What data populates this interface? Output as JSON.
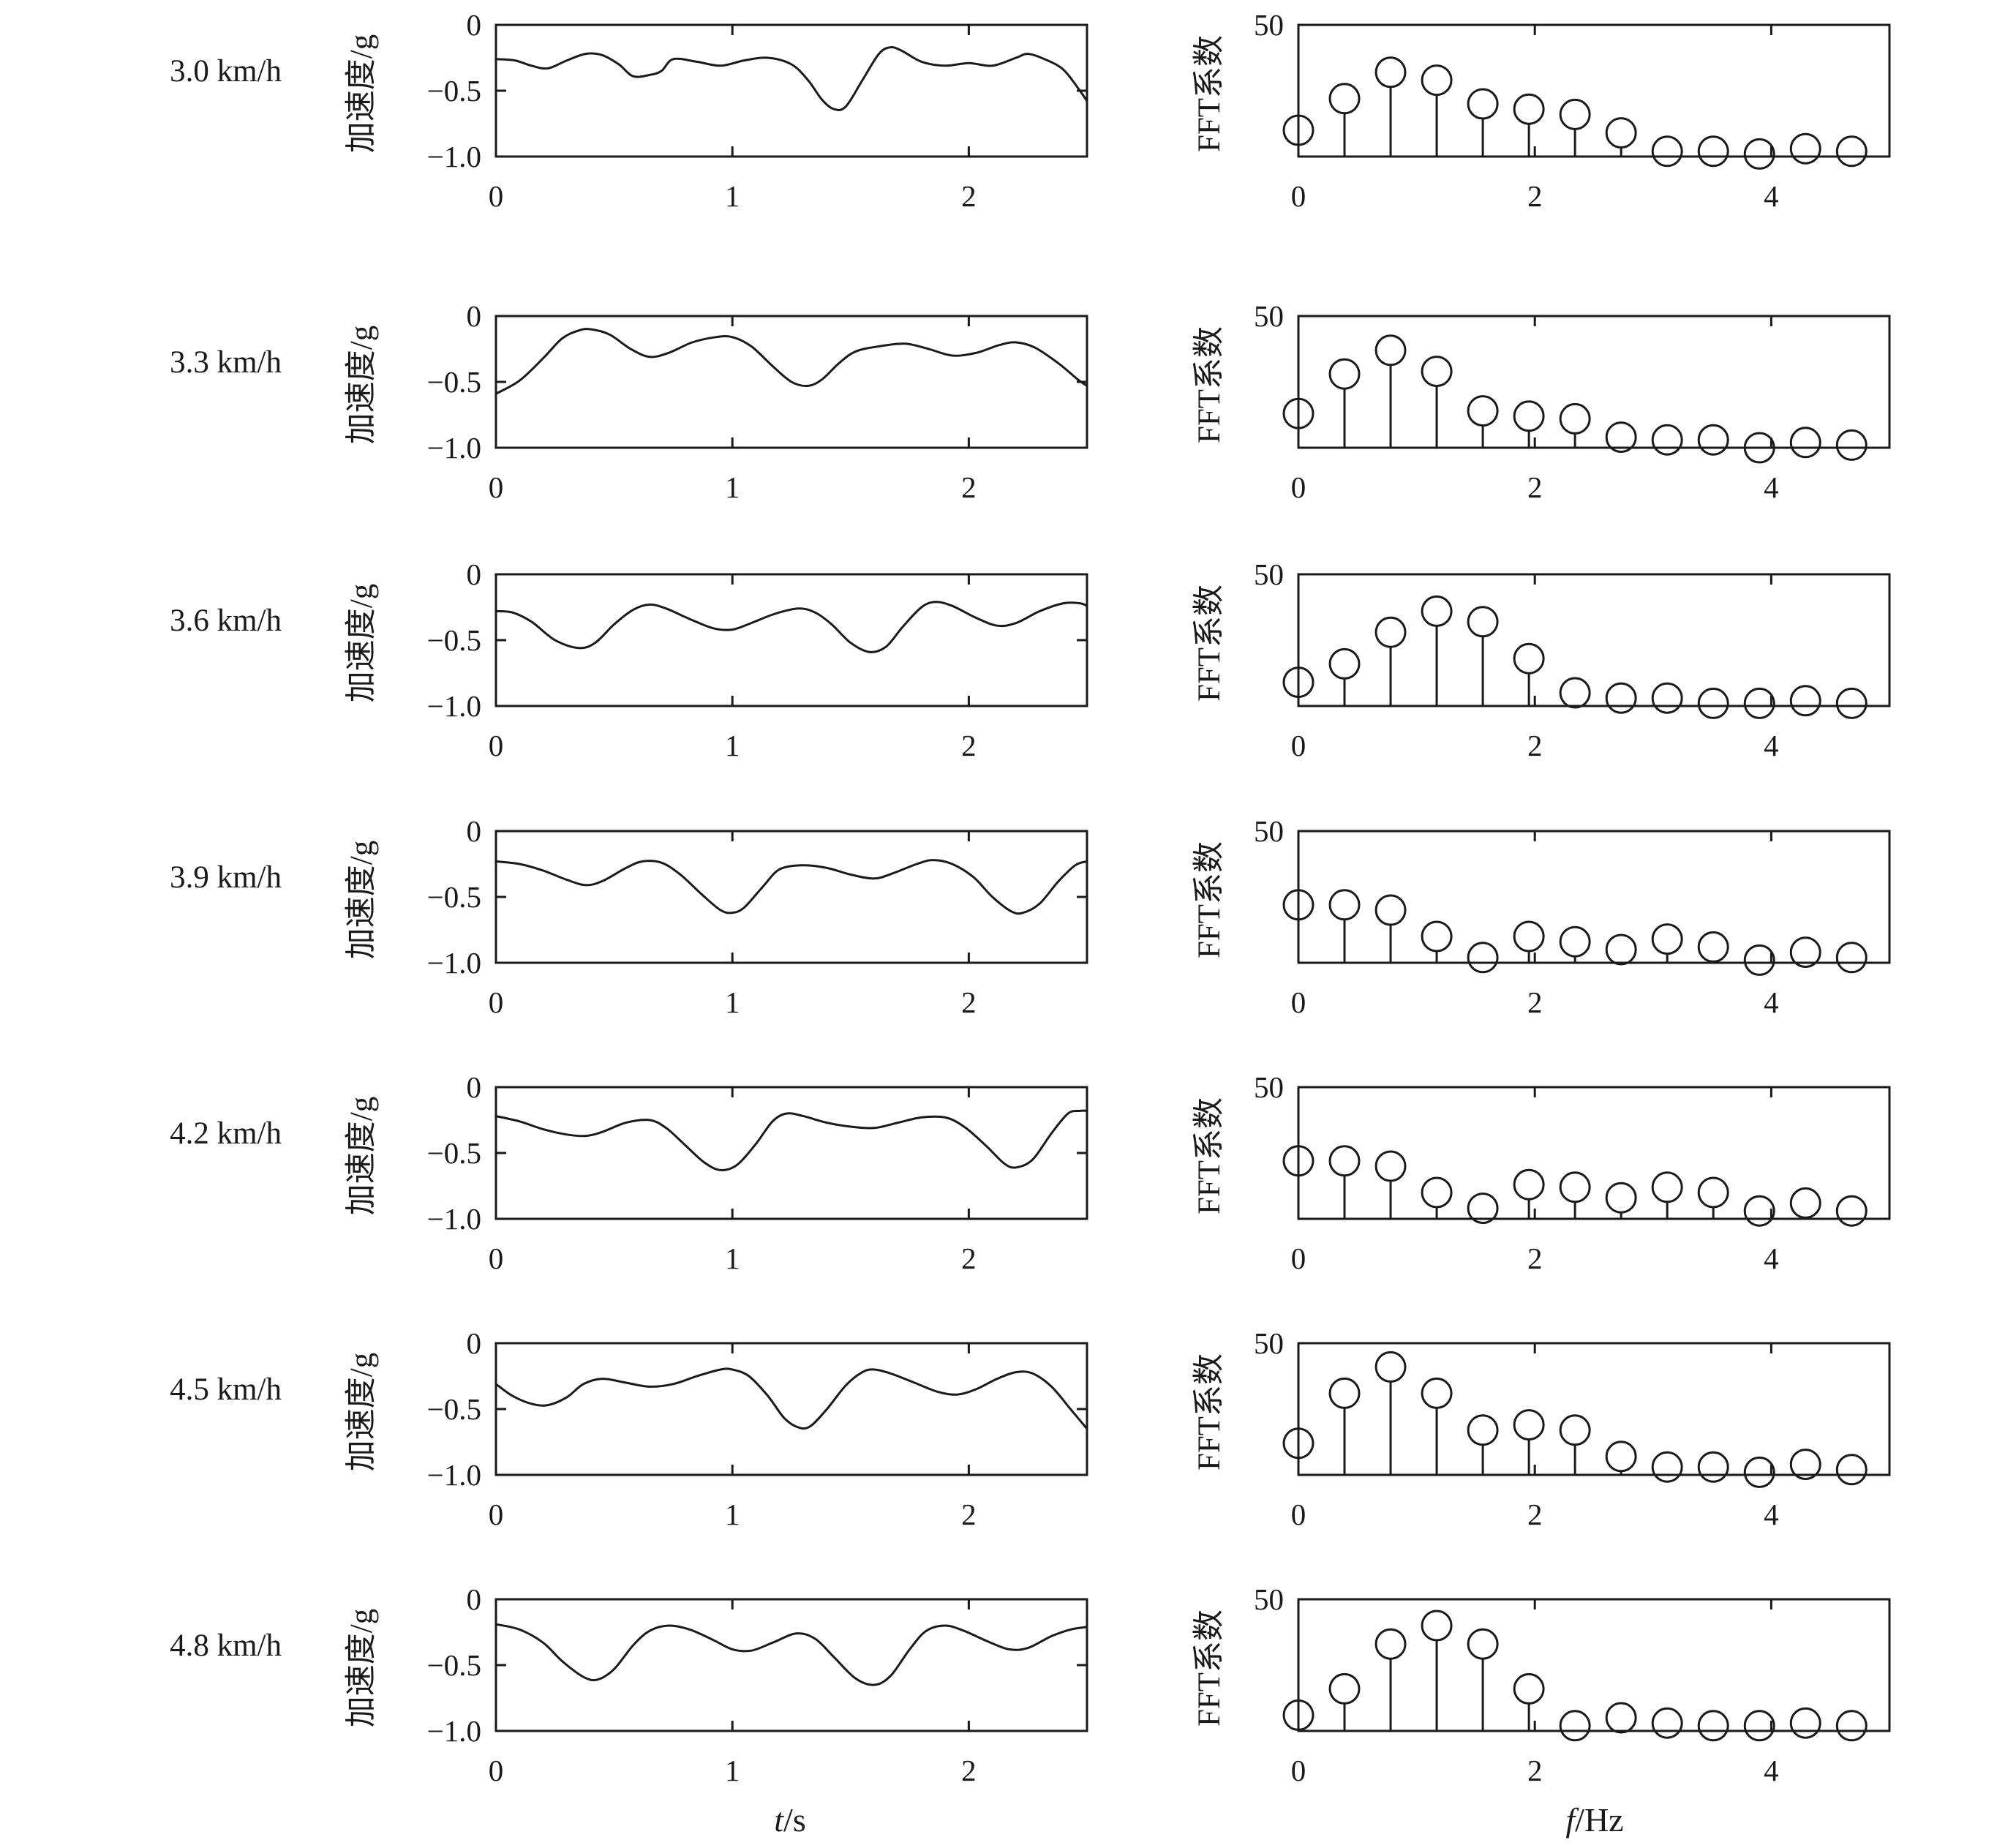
{
  "chart_data": {
    "type": "line",
    "x_label_italic": "t",
    "x_label_unit": "/s",
    "f_label_italic": "f",
    "f_label_unit": "/Hz",
    "time_ylabel": "加速度/g",
    "fft_ylabel": "FFT系数",
    "time_xlim": [
      0,
      2.5
    ],
    "time_ylim": [
      -1.0,
      0
    ],
    "time_xticks": [
      "0",
      "1",
      "2"
    ],
    "time_yticks": [
      "0",
      "−0.5",
      "−1.0"
    ],
    "fft_xlim": [
      0,
      5
    ],
    "fft_ylim": [
      0,
      50
    ],
    "fft_xticks": [
      "0",
      "2",
      "4"
    ],
    "fft_yticks": [
      "50"
    ],
    "fft_frequencies": [
      0,
      0.39,
      0.78,
      1.17,
      1.56,
      1.95,
      2.34,
      2.73,
      3.12,
      3.51,
      3.9,
      4.29,
      4.68
    ],
    "rows": [
      {
        "speed": "3.0 km/h",
        "time_series": [
          [
            0,
            -0.26
          ],
          [
            0.08,
            -0.27
          ],
          [
            0.15,
            -0.31
          ],
          [
            0.22,
            -0.33
          ],
          [
            0.3,
            -0.27
          ],
          [
            0.38,
            -0.22
          ],
          [
            0.45,
            -0.23
          ],
          [
            0.52,
            -0.3
          ],
          [
            0.58,
            -0.39
          ],
          [
            0.65,
            -0.38
          ],
          [
            0.7,
            -0.35
          ],
          [
            0.75,
            -0.26
          ],
          [
            0.85,
            -0.28
          ],
          [
            0.95,
            -0.31
          ],
          [
            1.05,
            -0.27
          ],
          [
            1.15,
            -0.25
          ],
          [
            1.25,
            -0.3
          ],
          [
            1.32,
            -0.42
          ],
          [
            1.38,
            -0.57
          ],
          [
            1.43,
            -0.64
          ],
          [
            1.48,
            -0.62
          ],
          [
            1.55,
            -0.42
          ],
          [
            1.62,
            -0.22
          ],
          [
            1.67,
            -0.17
          ],
          [
            1.72,
            -0.2
          ],
          [
            1.8,
            -0.28
          ],
          [
            1.9,
            -0.31
          ],
          [
            2.0,
            -0.29
          ],
          [
            2.1,
            -0.31
          ],
          [
            2.2,
            -0.25
          ],
          [
            2.25,
            -0.22
          ],
          [
            2.32,
            -0.26
          ],
          [
            2.4,
            -0.34
          ],
          [
            2.47,
            -0.5
          ],
          [
            2.5,
            -0.58
          ]
        ],
        "fft_values": [
          10,
          22,
          32,
          29,
          20,
          18,
          16,
          9,
          2,
          2,
          1,
          3,
          2
        ]
      },
      {
        "speed": "3.3 km/h",
        "time_series": [
          [
            0,
            -0.59
          ],
          [
            0.1,
            -0.49
          ],
          [
            0.2,
            -0.32
          ],
          [
            0.28,
            -0.17
          ],
          [
            0.35,
            -0.11
          ],
          [
            0.4,
            -0.1
          ],
          [
            0.48,
            -0.14
          ],
          [
            0.57,
            -0.25
          ],
          [
            0.65,
            -0.31
          ],
          [
            0.73,
            -0.28
          ],
          [
            0.83,
            -0.2
          ],
          [
            0.93,
            -0.16
          ],
          [
            1.0,
            -0.16
          ],
          [
            1.08,
            -0.23
          ],
          [
            1.17,
            -0.38
          ],
          [
            1.25,
            -0.5
          ],
          [
            1.32,
            -0.53
          ],
          [
            1.38,
            -0.48
          ],
          [
            1.45,
            -0.36
          ],
          [
            1.52,
            -0.27
          ],
          [
            1.62,
            -0.23
          ],
          [
            1.73,
            -0.21
          ],
          [
            1.83,
            -0.25
          ],
          [
            1.93,
            -0.3
          ],
          [
            2.03,
            -0.28
          ],
          [
            2.13,
            -0.22
          ],
          [
            2.2,
            -0.2
          ],
          [
            2.28,
            -0.24
          ],
          [
            2.38,
            -0.36
          ],
          [
            2.46,
            -0.48
          ],
          [
            2.5,
            -0.53
          ]
        ],
        "fft_values": [
          13,
          28,
          37,
          29,
          14,
          12,
          11,
          4,
          3,
          3,
          0,
          2,
          1
        ]
      },
      {
        "speed": "3.6 km/h",
        "time_series": [
          [
            0,
            -0.28
          ],
          [
            0.07,
            -0.29
          ],
          [
            0.15,
            -0.36
          ],
          [
            0.25,
            -0.5
          ],
          [
            0.35,
            -0.56
          ],
          [
            0.42,
            -0.52
          ],
          [
            0.5,
            -0.38
          ],
          [
            0.58,
            -0.27
          ],
          [
            0.65,
            -0.23
          ],
          [
            0.72,
            -0.26
          ],
          [
            0.82,
            -0.34
          ],
          [
            0.92,
            -0.41
          ],
          [
            1.0,
            -0.42
          ],
          [
            1.08,
            -0.37
          ],
          [
            1.18,
            -0.3
          ],
          [
            1.28,
            -0.26
          ],
          [
            1.35,
            -0.29
          ],
          [
            1.42,
            -0.38
          ],
          [
            1.5,
            -0.52
          ],
          [
            1.58,
            -0.59
          ],
          [
            1.65,
            -0.55
          ],
          [
            1.72,
            -0.4
          ],
          [
            1.8,
            -0.25
          ],
          [
            1.86,
            -0.21
          ],
          [
            1.93,
            -0.24
          ],
          [
            2.03,
            -0.33
          ],
          [
            2.12,
            -0.39
          ],
          [
            2.2,
            -0.37
          ],
          [
            2.3,
            -0.28
          ],
          [
            2.4,
            -0.22
          ],
          [
            2.47,
            -0.22
          ],
          [
            2.5,
            -0.24
          ]
        ],
        "fft_values": [
          9,
          16,
          28,
          36,
          32,
          18,
          5,
          3,
          3,
          1,
          1,
          2,
          1
        ]
      },
      {
        "speed": "3.9 km/h",
        "time_series": [
          [
            0,
            -0.23
          ],
          [
            0.1,
            -0.25
          ],
          [
            0.2,
            -0.3
          ],
          [
            0.3,
            -0.37
          ],
          [
            0.38,
            -0.41
          ],
          [
            0.45,
            -0.38
          ],
          [
            0.55,
            -0.28
          ],
          [
            0.62,
            -0.23
          ],
          [
            0.7,
            -0.24
          ],
          [
            0.78,
            -0.33
          ],
          [
            0.87,
            -0.48
          ],
          [
            0.95,
            -0.6
          ],
          [
            1.0,
            -0.62
          ],
          [
            1.05,
            -0.58
          ],
          [
            1.13,
            -0.42
          ],
          [
            1.2,
            -0.29
          ],
          [
            1.3,
            -0.26
          ],
          [
            1.4,
            -0.28
          ],
          [
            1.5,
            -0.33
          ],
          [
            1.6,
            -0.36
          ],
          [
            1.68,
            -0.32
          ],
          [
            1.78,
            -0.25
          ],
          [
            1.85,
            -0.22
          ],
          [
            1.93,
            -0.25
          ],
          [
            2.02,
            -0.35
          ],
          [
            2.1,
            -0.5
          ],
          [
            2.18,
            -0.61
          ],
          [
            2.23,
            -0.62
          ],
          [
            2.3,
            -0.55
          ],
          [
            2.38,
            -0.38
          ],
          [
            2.45,
            -0.26
          ],
          [
            2.5,
            -0.23
          ]
        ],
        "fft_values": [
          22,
          22,
          20,
          10,
          2,
          10,
          8,
          5,
          9,
          6,
          1,
          4,
          2
        ]
      },
      {
        "speed": "4.2 km/h",
        "time_series": [
          [
            0,
            -0.22
          ],
          [
            0.1,
            -0.26
          ],
          [
            0.2,
            -0.32
          ],
          [
            0.3,
            -0.36
          ],
          [
            0.38,
            -0.37
          ],
          [
            0.45,
            -0.34
          ],
          [
            0.55,
            -0.27
          ],
          [
            0.65,
            -0.25
          ],
          [
            0.72,
            -0.31
          ],
          [
            0.8,
            -0.44
          ],
          [
            0.88,
            -0.57
          ],
          [
            0.95,
            -0.63
          ],
          [
            1.02,
            -0.59
          ],
          [
            1.1,
            -0.43
          ],
          [
            1.17,
            -0.26
          ],
          [
            1.23,
            -0.2
          ],
          [
            1.3,
            -0.22
          ],
          [
            1.4,
            -0.27
          ],
          [
            1.5,
            -0.3
          ],
          [
            1.6,
            -0.31
          ],
          [
            1.7,
            -0.27
          ],
          [
            1.8,
            -0.23
          ],
          [
            1.9,
            -0.23
          ],
          [
            1.98,
            -0.3
          ],
          [
            2.07,
            -0.44
          ],
          [
            2.15,
            -0.58
          ],
          [
            2.2,
            -0.61
          ],
          [
            2.27,
            -0.55
          ],
          [
            2.35,
            -0.35
          ],
          [
            2.42,
            -0.2
          ],
          [
            2.47,
            -0.18
          ],
          [
            2.5,
            -0.18
          ]
        ],
        "fft_values": [
          22,
          22,
          20,
          10,
          4,
          13,
          12,
          8,
          12,
          10,
          3,
          6,
          3
        ]
      },
      {
        "speed": "4.5 km/h",
        "time_series": [
          [
            0,
            -0.31
          ],
          [
            0.07,
            -0.4
          ],
          [
            0.15,
            -0.46
          ],
          [
            0.22,
            -0.47
          ],
          [
            0.3,
            -0.41
          ],
          [
            0.37,
            -0.31
          ],
          [
            0.45,
            -0.27
          ],
          [
            0.55,
            -0.3
          ],
          [
            0.65,
            -0.33
          ],
          [
            0.75,
            -0.31
          ],
          [
            0.85,
            -0.25
          ],
          [
            0.95,
            -0.2
          ],
          [
            1.0,
            -0.2
          ],
          [
            1.07,
            -0.25
          ],
          [
            1.15,
            -0.4
          ],
          [
            1.22,
            -0.57
          ],
          [
            1.28,
            -0.64
          ],
          [
            1.33,
            -0.63
          ],
          [
            1.4,
            -0.5
          ],
          [
            1.48,
            -0.32
          ],
          [
            1.55,
            -0.22
          ],
          [
            1.6,
            -0.2
          ],
          [
            1.67,
            -0.23
          ],
          [
            1.77,
            -0.3
          ],
          [
            1.87,
            -0.37
          ],
          [
            1.95,
            -0.39
          ],
          [
            2.03,
            -0.35
          ],
          [
            2.12,
            -0.27
          ],
          [
            2.2,
            -0.22
          ],
          [
            2.27,
            -0.23
          ],
          [
            2.35,
            -0.33
          ],
          [
            2.43,
            -0.5
          ],
          [
            2.5,
            -0.65
          ]
        ],
        "fft_values": [
          12,
          31,
          41,
          31,
          17,
          19,
          17,
          7,
          3,
          3,
          1,
          4,
          2
        ]
      },
      {
        "speed": "4.8 km/h",
        "time_series": [
          [
            0,
            -0.19
          ],
          [
            0.1,
            -0.23
          ],
          [
            0.2,
            -0.33
          ],
          [
            0.28,
            -0.47
          ],
          [
            0.37,
            -0.59
          ],
          [
            0.43,
            -0.61
          ],
          [
            0.5,
            -0.53
          ],
          [
            0.58,
            -0.35
          ],
          [
            0.65,
            -0.24
          ],
          [
            0.73,
            -0.2
          ],
          [
            0.82,
            -0.23
          ],
          [
            0.92,
            -0.31
          ],
          [
            1.0,
            -0.38
          ],
          [
            1.08,
            -0.39
          ],
          [
            1.17,
            -0.33
          ],
          [
            1.27,
            -0.26
          ],
          [
            1.35,
            -0.3
          ],
          [
            1.43,
            -0.44
          ],
          [
            1.52,
            -0.6
          ],
          [
            1.6,
            -0.65
          ],
          [
            1.67,
            -0.58
          ],
          [
            1.75,
            -0.38
          ],
          [
            1.82,
            -0.24
          ],
          [
            1.9,
            -0.2
          ],
          [
            1.98,
            -0.24
          ],
          [
            2.08,
            -0.32
          ],
          [
            2.17,
            -0.38
          ],
          [
            2.25,
            -0.37
          ],
          [
            2.35,
            -0.28
          ],
          [
            2.43,
            -0.23
          ],
          [
            2.5,
            -0.21
          ]
        ],
        "fft_values": [
          6,
          16,
          33,
          40,
          33,
          16,
          2,
          5,
          3,
          2,
          2,
          3,
          2
        ]
      }
    ]
  }
}
